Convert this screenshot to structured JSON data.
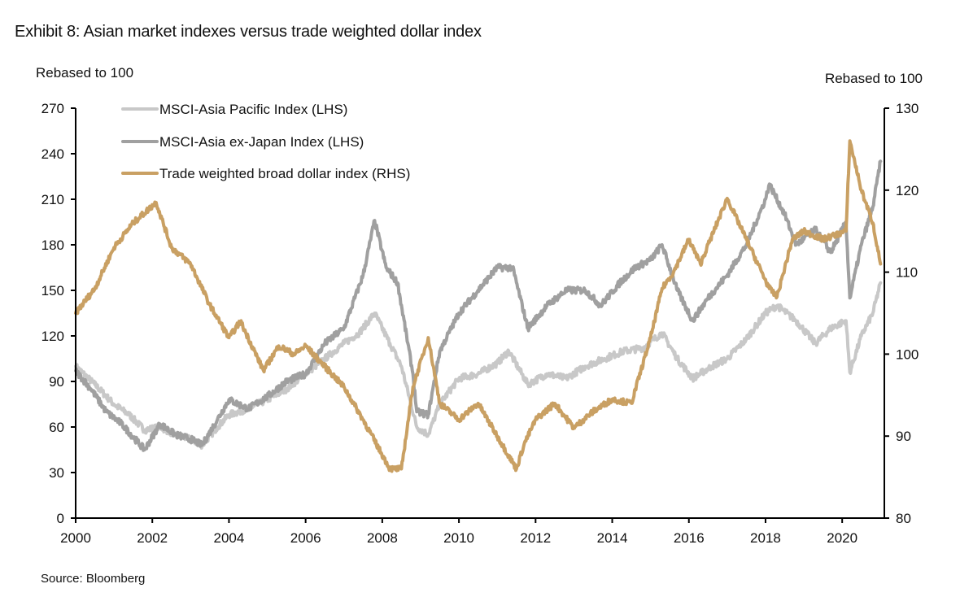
{
  "title": "Exhibit 8: Asian market indexes versus trade weighted dollar index",
  "source": "Source: Bloomberg",
  "chart_data": {
    "type": "line",
    "title": "Exhibit 8: Asian market indexes versus trade weighted dollar index",
    "xlabel": "",
    "ylabel_left": "Rebased to 100",
    "ylabel_right": "Rebased to 100",
    "xlim": [
      2000,
      2021.1
    ],
    "ylim_left": [
      0,
      270
    ],
    "ylim_right": [
      80,
      130
    ],
    "x_ticks": [
      2000,
      2002,
      2004,
      2006,
      2008,
      2010,
      2012,
      2014,
      2016,
      2018,
      2020
    ],
    "x_tick_labels": [
      "2000",
      "2002",
      "2004",
      "2006",
      "2008",
      "2010",
      "2012",
      "2014",
      "2016",
      "2018",
      "2020"
    ],
    "y_ticks_left": [
      0,
      30,
      60,
      90,
      120,
      150,
      180,
      210,
      240,
      270
    ],
    "y_tick_labels_left": [
      "0",
      "30",
      "60",
      "90",
      "120",
      "150",
      "180",
      "210",
      "240",
      "270"
    ],
    "y_ticks_right": [
      80,
      90,
      100,
      110,
      120,
      130
    ],
    "y_tick_labels_right": [
      "80",
      "90",
      "100",
      "110",
      "120",
      "130"
    ],
    "grid": false,
    "legend_position": "top-left",
    "series": [
      {
        "name": "MSCI-Asia Pacific Index (LHS)",
        "axis": "left",
        "color": "#c8c8c8",
        "x": [
          2000,
          2000.5,
          2001,
          2001.4,
          2001.8,
          2002.2,
          2002.6,
          2003,
          2003.3,
          2003.7,
          2004,
          2004.5,
          2005,
          2005.5,
          2006,
          2006.5,
          2007,
          2007.4,
          2007.8,
          2008.2,
          2008.5,
          2008.9,
          2009.2,
          2009.5,
          2010,
          2010.5,
          2011,
          2011.3,
          2011.8,
          2012.3,
          2012.8,
          2013.3,
          2013.8,
          2014.3,
          2014.8,
          2015.3,
          2015.7,
          2016.1,
          2016.6,
          2017,
          2017.5,
          2018,
          2018.3,
          2018.8,
          2019.3,
          2019.7,
          2020.1,
          2020.2,
          2020.5,
          2020.8,
          2021
        ],
        "values": [
          100,
          88,
          75,
          68,
          58,
          60,
          55,
          52,
          48,
          60,
          68,
          72,
          78,
          85,
          95,
          105,
          115,
          122,
          135,
          115,
          100,
          60,
          55,
          75,
          92,
          95,
          102,
          110,
          88,
          95,
          92,
          100,
          105,
          110,
          112,
          122,
          105,
          92,
          100,
          105,
          118,
          135,
          140,
          130,
          115,
          125,
          130,
          96,
          120,
          135,
          155
        ]
      },
      {
        "name": "MSCI-Asia ex-Japan Index (LHS)",
        "axis": "left",
        "color": "#a0a0a0",
        "x": [
          2000,
          2000.4,
          2000.8,
          2001.2,
          2001.8,
          2002.2,
          2002.6,
          2003,
          2003.3,
          2003.7,
          2004,
          2004.5,
          2005,
          2005.5,
          2006,
          2006.5,
          2007,
          2007.5,
          2007.8,
          2008.1,
          2008.4,
          2008.8,
          2008.9,
          2009.2,
          2009.5,
          2010,
          2010.5,
          2011,
          2011.4,
          2011.8,
          2012.3,
          2012.8,
          2013.3,
          2013.7,
          2014.2,
          2014.6,
          2015,
          2015.3,
          2015.7,
          2016.1,
          2016.5,
          2017,
          2017.5,
          2018,
          2018.1,
          2018.5,
          2018.8,
          2019.3,
          2019.7,
          2020.1,
          2020.2,
          2020.5,
          2020.8,
          2021
        ],
        "values": [
          97,
          85,
          70,
          62,
          45,
          62,
          55,
          52,
          48,
          65,
          78,
          72,
          80,
          90,
          95,
          115,
          125,
          160,
          196,
          165,
          155,
          95,
          70,
          68,
          110,
          135,
          150,
          165,
          165,
          125,
          140,
          150,
          150,
          140,
          155,
          165,
          170,
          180,
          150,
          130,
          145,
          160,
          180,
          210,
          220,
          200,
          180,
          190,
          175,
          195,
          145,
          180,
          205,
          235
        ]
      },
      {
        "name": "Trade weighted broad dollar index (RHS)",
        "axis": "right",
        "color": "#c9a063",
        "x": [
          2000,
          2000.5,
          2001,
          2001.5,
          2002.1,
          2002.5,
          2003,
          2003.5,
          2004,
          2004.3,
          2004.9,
          2005.3,
          2005.7,
          2006,
          2006.5,
          2007,
          2007.5,
          2008.2,
          2008.5,
          2008.8,
          2009.2,
          2009.5,
          2010,
          2010.5,
          2011,
          2011.5,
          2011.7,
          2012,
          2012.5,
          2013,
          2013.5,
          2014,
          2014.5,
          2015,
          2015.3,
          2015.6,
          2016,
          2016.3,
          2017,
          2017.5,
          2018.1,
          2018.3,
          2018.7,
          2019,
          2019.5,
          2020.1,
          2020.2,
          2020.5,
          2020.8,
          2021
        ],
        "values": [
          105,
          108,
          113,
          116,
          118.5,
          113,
          111,
          106,
          102,
          104,
          98,
          101,
          100,
          101,
          98.5,
          96,
          92,
          86,
          86,
          96,
          102,
          94,
          92,
          94,
          90,
          86,
          89,
          92,
          94,
          91,
          93,
          94.5,
          94,
          102,
          108,
          110,
          114,
          111,
          119,
          114,
          108,
          107,
          114,
          115,
          114,
          115,
          126,
          120,
          116,
          111
        ]
      }
    ]
  }
}
